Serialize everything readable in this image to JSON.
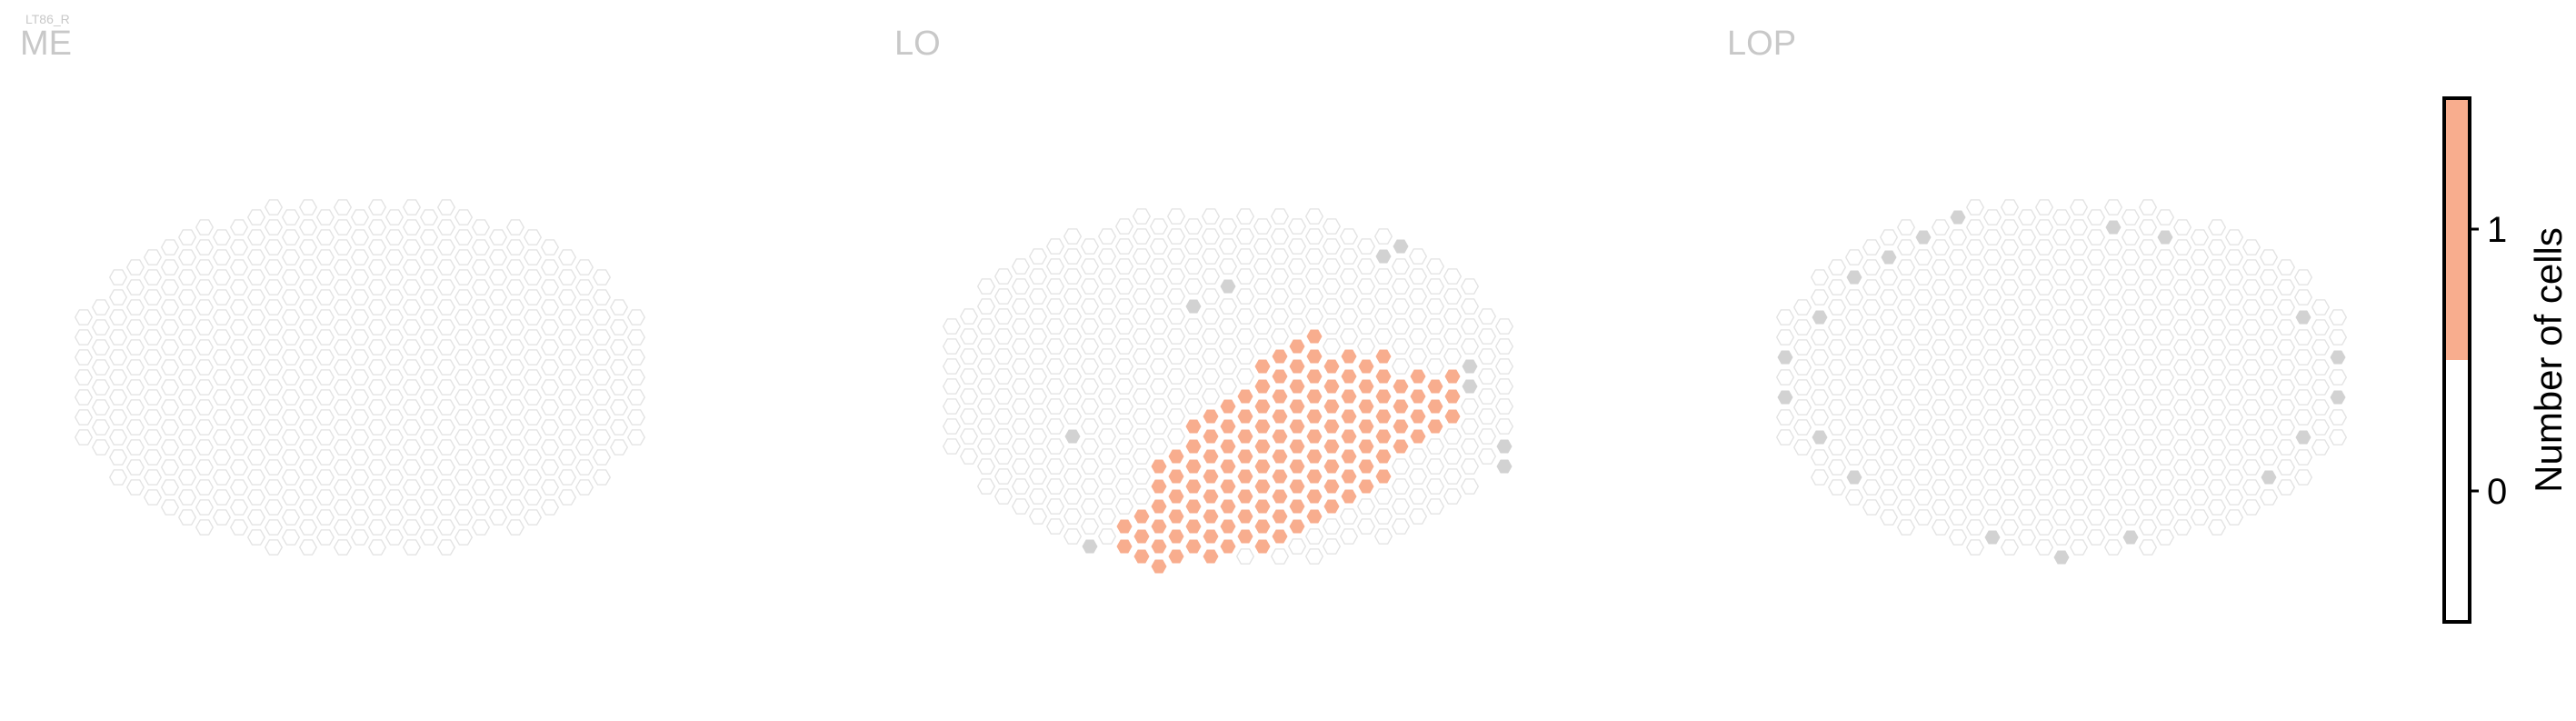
{
  "chart_data": {
    "type": "heatmap",
    "cell_type": "LT86_R",
    "colorbar": {
      "label": "Number of cells",
      "ticks": [
        0,
        1
      ],
      "colors": {
        "0": "#ffffff",
        "1": "#f8ad8e"
      },
      "range": [
        -0.5,
        1.5
      ]
    },
    "colors": {
      "empty_fill": "#ffffff",
      "empty_stroke": "#e2e2e2",
      "outlier_fill": "#d2d2d2",
      "value_fill": "#f8ad8e",
      "value_stroke": "#ffffff",
      "label_color": "#c8c8c8"
    },
    "panels": [
      {
        "name": "ME",
        "radius_cols": 17,
        "outliers": [],
        "patch_rows": []
      },
      {
        "name": "LO",
        "radius_cols": 17,
        "outliers": [
          [
            10,
            14
          ],
          [
            9,
            13
          ],
          [
            -2,
            8
          ],
          [
            0,
            10
          ],
          [
            -9,
            -5
          ],
          [
            -10,
            -3
          ],
          [
            -10,
            -13
          ],
          [
            -10,
            -15
          ],
          [
            -8,
            -16
          ],
          [
            -6,
            -17
          ],
          [
            -4,
            -18
          ],
          [
            -2,
            -19
          ],
          [
            14,
            2
          ],
          [
            14,
            0
          ],
          [
            15,
            -2
          ],
          [
            15,
            -4
          ],
          [
            16,
            -6
          ],
          [
            16,
            -8
          ]
        ],
        "patch_rows": [
          [
            -10,
            -1
          ],
          [
            -6,
            2
          ],
          [
            -6,
            4
          ],
          [
            -4,
            6
          ],
          [
            -4,
            8
          ],
          [
            -4,
            9
          ],
          [
            -2,
            10
          ],
          [
            -2,
            12
          ],
          [
            0,
            12
          ],
          [
            1,
            12
          ],
          [
            2,
            9
          ],
          [
            3,
            4
          ],
          [
            4,
            2
          ],
          [
            6,
            0
          ],
          [
            5,
            -2
          ],
          [
            6,
            -4
          ],
          [
            7,
            -6
          ],
          [
            8,
            -8
          ]
        ]
      },
      {
        "name": "LOP",
        "radius_cols": 17,
        "outliers": [
          [
            -12,
            -10
          ],
          [
            -13,
            -8
          ],
          [
            -14,
            -6
          ],
          [
            -15,
            -4
          ],
          [
            -16,
            -2
          ],
          [
            -17,
            0
          ],
          [
            -16,
            2
          ],
          [
            -15,
            4
          ],
          [
            -14,
            6
          ],
          [
            -13,
            8
          ],
          [
            -12,
            10
          ],
          [
            -10,
            12
          ],
          [
            -8,
            14
          ],
          [
            -6,
            16
          ],
          [
            12,
            -10
          ],
          [
            13,
            -8
          ],
          [
            14,
            -6
          ],
          [
            15,
            -4
          ],
          [
            16,
            -2
          ],
          [
            17,
            0
          ],
          [
            16,
            2
          ],
          [
            15,
            4
          ],
          [
            14,
            6
          ],
          [
            13,
            8
          ],
          [
            11,
            10
          ],
          [
            9,
            12
          ],
          [
            6,
            14
          ],
          [
            3,
            15
          ],
          [
            -4,
            -16
          ],
          [
            -2,
            -17
          ],
          [
            0,
            -18
          ],
          [
            2,
            -17
          ],
          [
            4,
            -16
          ]
        ]
      }
    ]
  }
}
